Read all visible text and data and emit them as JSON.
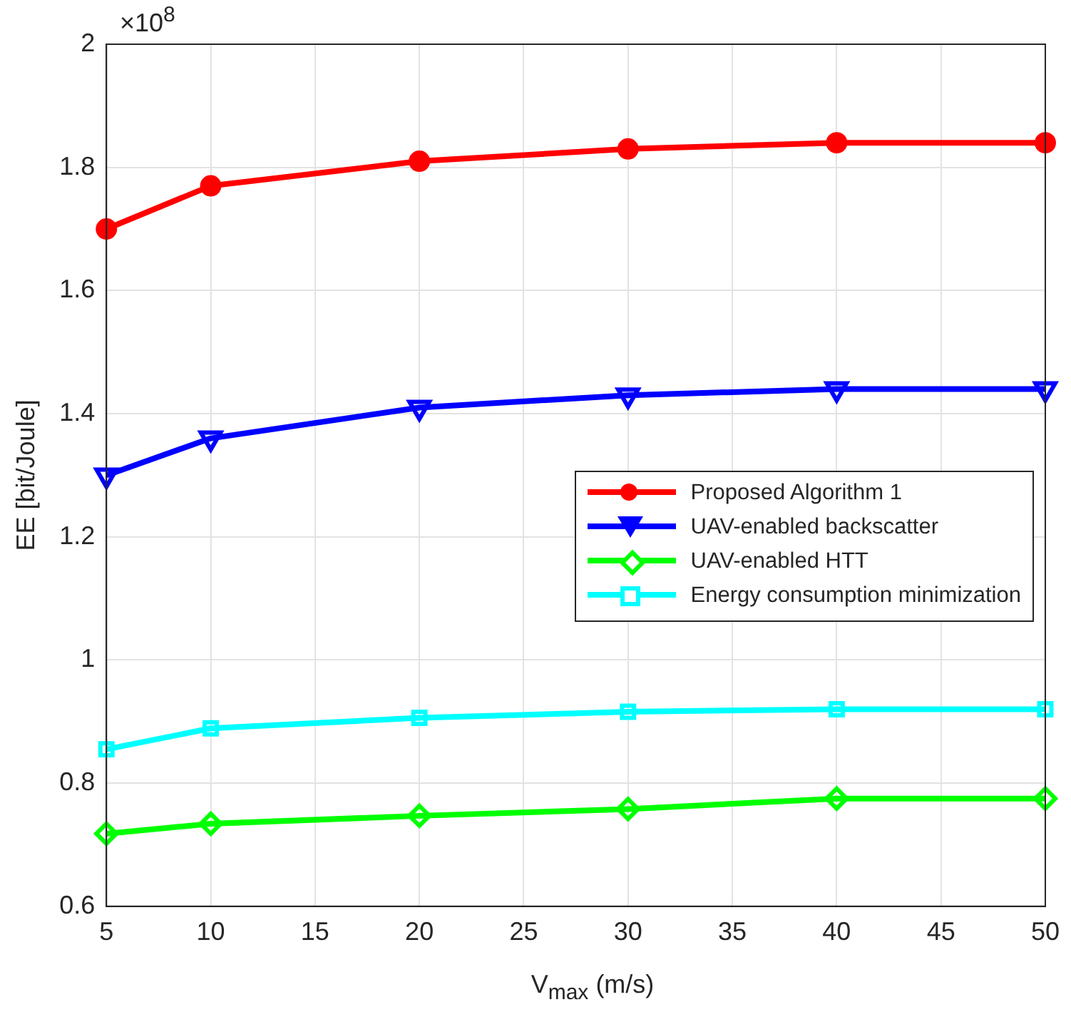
{
  "chart_data": {
    "type": "line",
    "xlabel": "V$_{max}$ (m/s)",
    "ylabel": "EE [bit/Joule]",
    "annotations": [
      "×10$^{8}$"
    ],
    "x": [
      5,
      10,
      20,
      30,
      40,
      50
    ],
    "series": [
      {
        "name": "Proposed Algorithm 1",
        "color": "#ff0000",
        "marker": "circle",
        "values": [
          1.7,
          1.77,
          1.81,
          1.83,
          1.84,
          1.84
        ]
      },
      {
        "name": "UAV-enabled backscatter",
        "color": "#0000ff",
        "marker": "triangle",
        "values": [
          1.3,
          1.36,
          1.41,
          1.43,
          1.44,
          1.44
        ]
      },
      {
        "name": "UAV-enabled HTT",
        "color": "#00ff00",
        "marker": "diamond",
        "values": [
          0.718,
          0.734,
          0.747,
          0.758,
          0.775,
          0.775
        ]
      },
      {
        "name": "Energy consumption minimization",
        "color": "#00ffff",
        "marker": "square",
        "values": [
          0.855,
          0.889,
          0.906,
          0.916,
          0.92,
          0.92
        ]
      }
    ],
    "xlim": [
      5,
      50
    ],
    "xticks": [
      5,
      10,
      15,
      20,
      25,
      30,
      35,
      40,
      45,
      50
    ],
    "ylim": [
      0.6,
      2
    ],
    "yticks": [
      0.6,
      0.8,
      1,
      1.2,
      1.4,
      1.6,
      1.8,
      2
    ],
    "grid": true,
    "legend": "right",
    "line_style": "solid"
  }
}
